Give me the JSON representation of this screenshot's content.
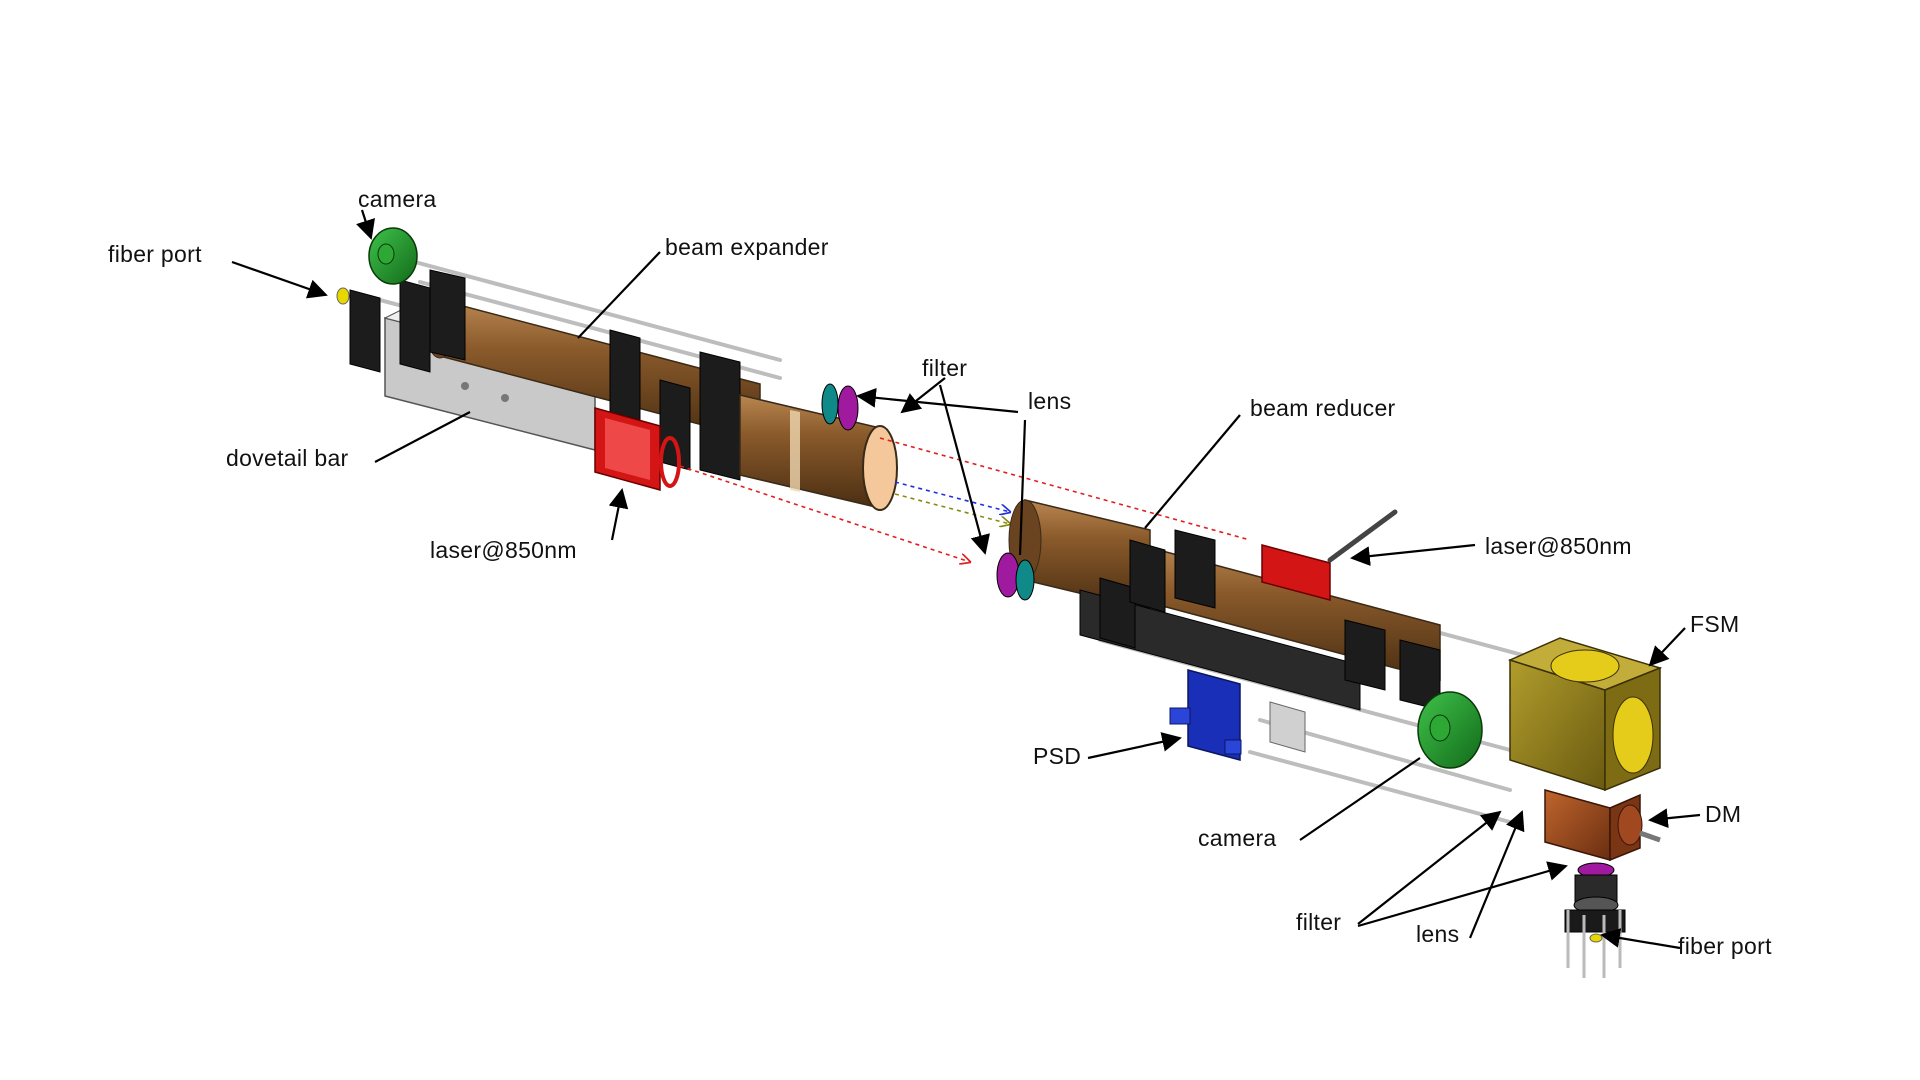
{
  "labels": {
    "camera_top": "camera",
    "fiber_port_left": "fiber port",
    "beam_expander": "beam expander",
    "filter_mid": "filter",
    "lens_mid": "lens",
    "beam_reducer": "beam reducer",
    "dovetail_bar": "dovetail bar",
    "laser_left": "laser@850nm",
    "laser_right": "laser@850nm",
    "fsm": "FSM",
    "psd": "PSD",
    "camera_bottom": "camera",
    "dm": "DM",
    "filter_bottom": "filter",
    "lens_bottom": "lens",
    "fiber_port_bottom": "fiber port"
  },
  "colors": {
    "tube_bronze": "#8a5a2b",
    "tube_highlight": "#c89a60",
    "camera_green": "#1f8f2a",
    "laser_red": "#d41515",
    "filter_magenta": "#a01aa0",
    "lens_teal": "#0f8a88",
    "fsm_olive": "#8c7a1a",
    "dm_copper": "#9a4a1c",
    "psd_blue": "#1a2fb8",
    "beam_red": "#e02020",
    "beam_blue": "#2030e0",
    "beam_olive": "#8a8a10",
    "fiber_yellow": "#e8d800"
  }
}
